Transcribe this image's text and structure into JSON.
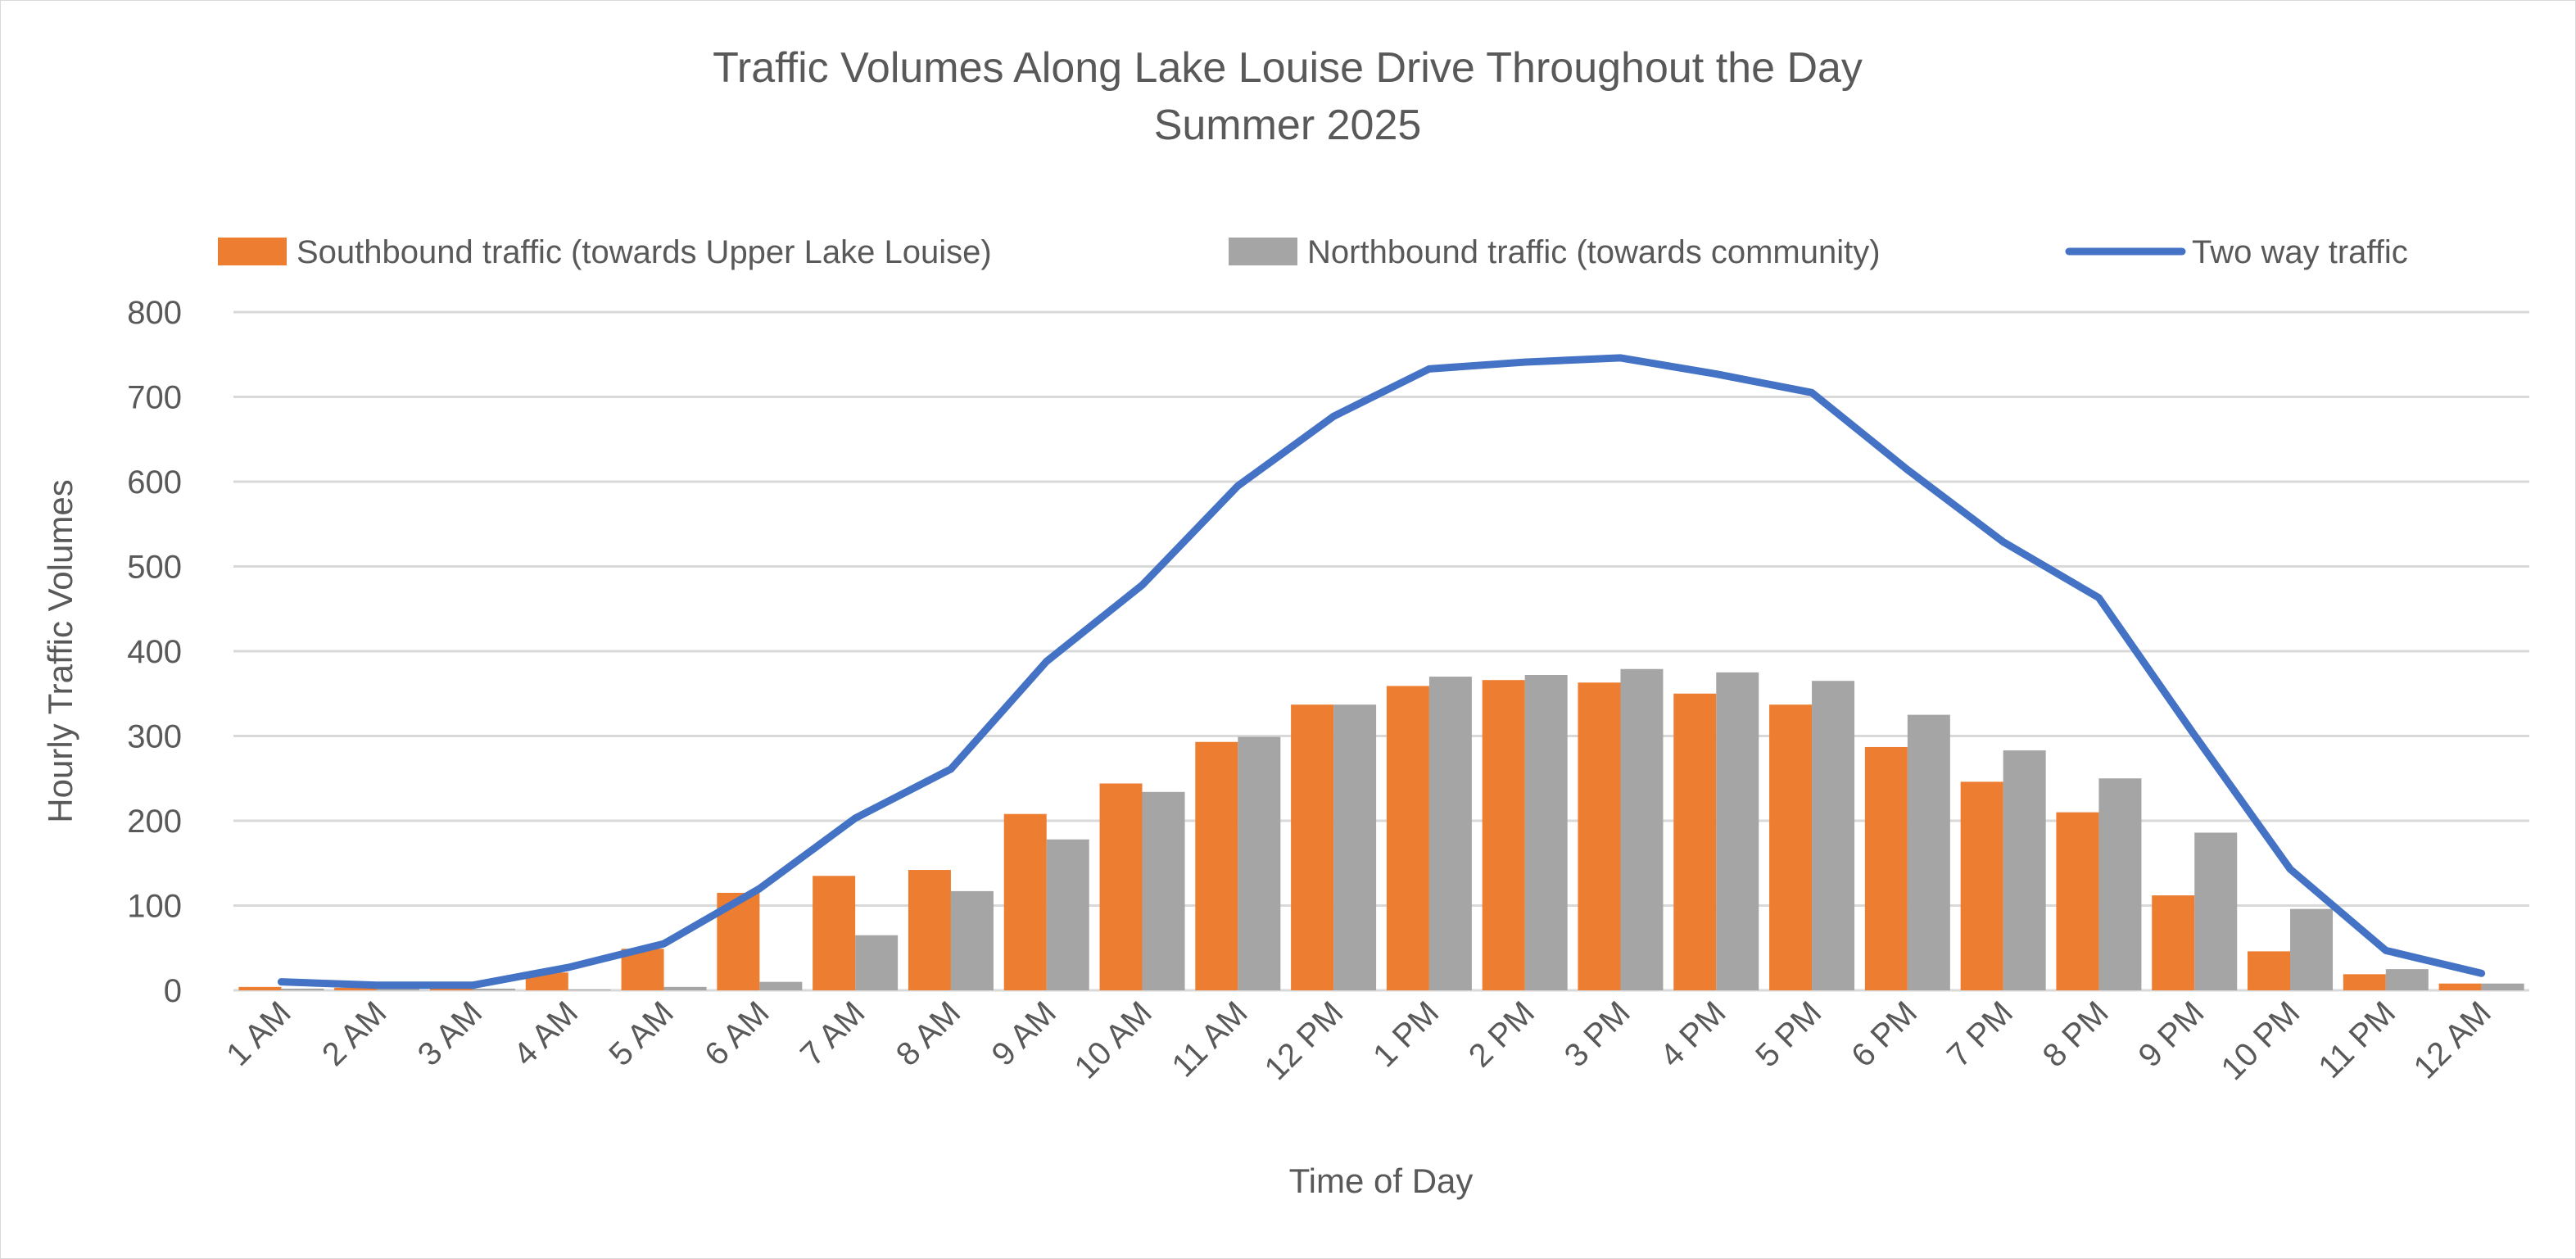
{
  "chart_data": {
    "type": "bar",
    "title": "Traffic Volumes Along Lake Louise Drive Throughout the Day",
    "subtitle": "Summer 2025",
    "xlabel": "Time of Day",
    "ylabel": "Hourly Traffic Volumes",
    "ylim": [
      0,
      800
    ],
    "yticks": [
      0,
      100,
      200,
      300,
      400,
      500,
      600,
      700,
      800
    ],
    "grid": true,
    "legend_position": "top",
    "categories": [
      "1 AM",
      "2 AM",
      "3 AM",
      "4 AM",
      "5 AM",
      "6 AM",
      "7 AM",
      "8 AM",
      "9 AM",
      "10 AM",
      "11 AM",
      "12 PM",
      "1 PM",
      "2 PM",
      "3 PM",
      "4 PM",
      "5 PM",
      "6 PM",
      "7 PM",
      "8 PM",
      "9 PM",
      "10 PM",
      "11 PM",
      "12 AM"
    ],
    "series": [
      {
        "name": "Southbound traffic (towards Upper Lake Louise)",
        "type": "bar",
        "color": "#ED7D31",
        "values": [
          4,
          3,
          3,
          21,
          49,
          115,
          135,
          142,
          208,
          244,
          293,
          337,
          359,
          366,
          363,
          350,
          337,
          287,
          246,
          210,
          112,
          46,
          19,
          8
        ]
      },
      {
        "name": "Northbound traffic (towards community)",
        "type": "bar",
        "color": "#A5A5A5",
        "values": [
          2,
          2,
          2,
          1,
          4,
          10,
          65,
          117,
          178,
          234,
          299,
          337,
          370,
          372,
          379,
          375,
          365,
          325,
          283,
          250,
          186,
          96,
          25,
          8
        ]
      },
      {
        "name": "Two way traffic",
        "type": "line",
        "color": "#4472C4",
        "values": [
          10,
          6,
          6,
          27,
          55,
          120,
          203,
          261,
          388,
          478,
          595,
          677,
          733,
          741,
          746,
          727,
          705,
          614,
          529,
          463,
          301,
          143,
          47,
          20
        ]
      }
    ]
  }
}
